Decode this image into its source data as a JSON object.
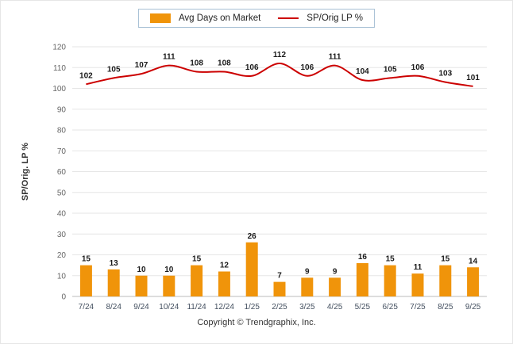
{
  "legend": {
    "bar_label": "Avg Days on Market",
    "line_label": "SP/Orig LP %"
  },
  "footer": {
    "copyright": "Copyright © Trendgraphix, Inc."
  },
  "colors": {
    "bar": "#F0940A",
    "line": "#CC0000",
    "grid": "#E6E6E6",
    "axis_line": "#BBBBBB",
    "tick_text": "#666666",
    "x_text": "#44506033",
    "x_text_solid": "#445060",
    "value_text": "#1A1A1A",
    "ylabel_text": "#333333"
  },
  "chart_data": {
    "type": "bar+line",
    "categories": [
      "7/24",
      "8/24",
      "9/24",
      "10/24",
      "11/24",
      "12/24",
      "1/25",
      "2/25",
      "3/25",
      "4/25",
      "5/25",
      "6/25",
      "7/25",
      "8/25",
      "9/25"
    ],
    "series": [
      {
        "name": "Avg Days on Market",
        "type": "bar",
        "values": [
          15,
          13,
          10,
          10,
          15,
          12,
          26,
          7,
          9,
          9,
          16,
          15,
          11,
          15,
          14
        ]
      },
      {
        "name": "SP/Orig LP %",
        "type": "line",
        "values": [
          102,
          105,
          107,
          111,
          108,
          108,
          106,
          112,
          106,
          111,
          104,
          105,
          106,
          103,
          101
        ]
      }
    ],
    "title": "",
    "xlabel": "",
    "ylabel": "SP/Orig. LP %",
    "ylim": [
      0,
      120
    ],
    "ytick_step": 10,
    "grid": true,
    "legend_position": "top"
  }
}
